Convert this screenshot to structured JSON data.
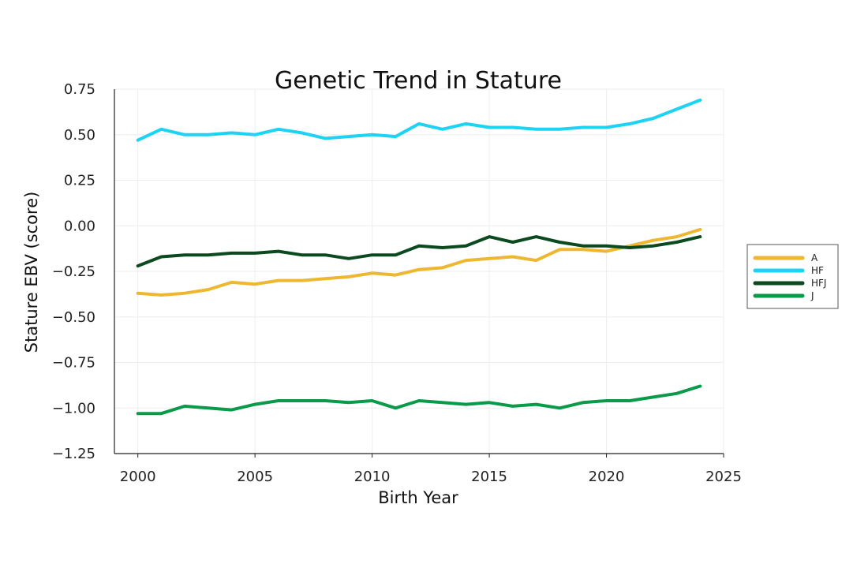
{
  "chart_data": {
    "type": "line",
    "title": "Genetic Trend in Stature",
    "xlabel": "Birth Year",
    "ylabel": "Stature EBV (score)",
    "xlim": [
      1999,
      2025
    ],
    "ylim": [
      -1.25,
      0.75
    ],
    "x_ticks": [
      2000,
      2005,
      2010,
      2015,
      2020,
      2025
    ],
    "y_ticks": [
      0.75,
      0.5,
      0.25,
      0.0,
      -0.25,
      -0.5,
      -0.75,
      -1.0,
      -1.25
    ],
    "x_tick_labels": [
      "2000",
      "2005",
      "2010",
      "2015",
      "2020",
      "2025"
    ],
    "y_tick_labels": [
      "0.75",
      "0.50",
      "0.25",
      "0.00",
      "−0.25",
      "−0.50",
      "−0.75",
      "−1.00",
      "−1.25"
    ],
    "grid": true,
    "legend_position": "right",
    "x": [
      2000,
      2001,
      2002,
      2003,
      2004,
      2005,
      2006,
      2007,
      2008,
      2009,
      2010,
      2011,
      2012,
      2013,
      2014,
      2015,
      2016,
      2017,
      2018,
      2019,
      2020,
      2021,
      2022,
      2023,
      2024
    ],
    "series": [
      {
        "name": "A",
        "color": "#EDB830",
        "values": [
          -0.37,
          -0.38,
          -0.37,
          -0.35,
          -0.31,
          -0.32,
          -0.3,
          -0.3,
          -0.29,
          -0.28,
          -0.26,
          -0.27,
          -0.24,
          -0.23,
          -0.19,
          -0.18,
          -0.17,
          -0.19,
          -0.13,
          -0.13,
          -0.14,
          -0.11,
          -0.08,
          -0.06,
          -0.02
        ]
      },
      {
        "name": "HF",
        "color": "#1CD3F4",
        "values": [
          0.47,
          0.53,
          0.5,
          0.5,
          0.51,
          0.5,
          0.53,
          0.51,
          0.48,
          0.49,
          0.5,
          0.49,
          0.56,
          0.53,
          0.56,
          0.54,
          0.54,
          0.53,
          0.53,
          0.54,
          0.54,
          0.56,
          0.59,
          0.64,
          0.69
        ]
      },
      {
        "name": "HFJ",
        "color": "#0B4A1E",
        "values": [
          -0.22,
          -0.17,
          -0.16,
          -0.16,
          -0.15,
          -0.15,
          -0.14,
          -0.16,
          -0.16,
          -0.18,
          -0.16,
          -0.16,
          -0.11,
          -0.12,
          -0.11,
          -0.06,
          -0.09,
          -0.06,
          -0.09,
          -0.11,
          -0.11,
          -0.12,
          -0.11,
          -0.09,
          -0.06
        ]
      },
      {
        "name": "J",
        "color": "#0A9A4A",
        "values": [
          -1.03,
          -1.03,
          -0.99,
          -1.0,
          -1.01,
          -0.98,
          -0.96,
          -0.96,
          -0.96,
          -0.97,
          -0.96,
          -1.0,
          -0.96,
          -0.97,
          -0.98,
          -0.97,
          -0.99,
          -0.98,
          -1.0,
          -0.97,
          -0.96,
          -0.96,
          -0.94,
          -0.92,
          -0.88
        ]
      }
    ]
  }
}
